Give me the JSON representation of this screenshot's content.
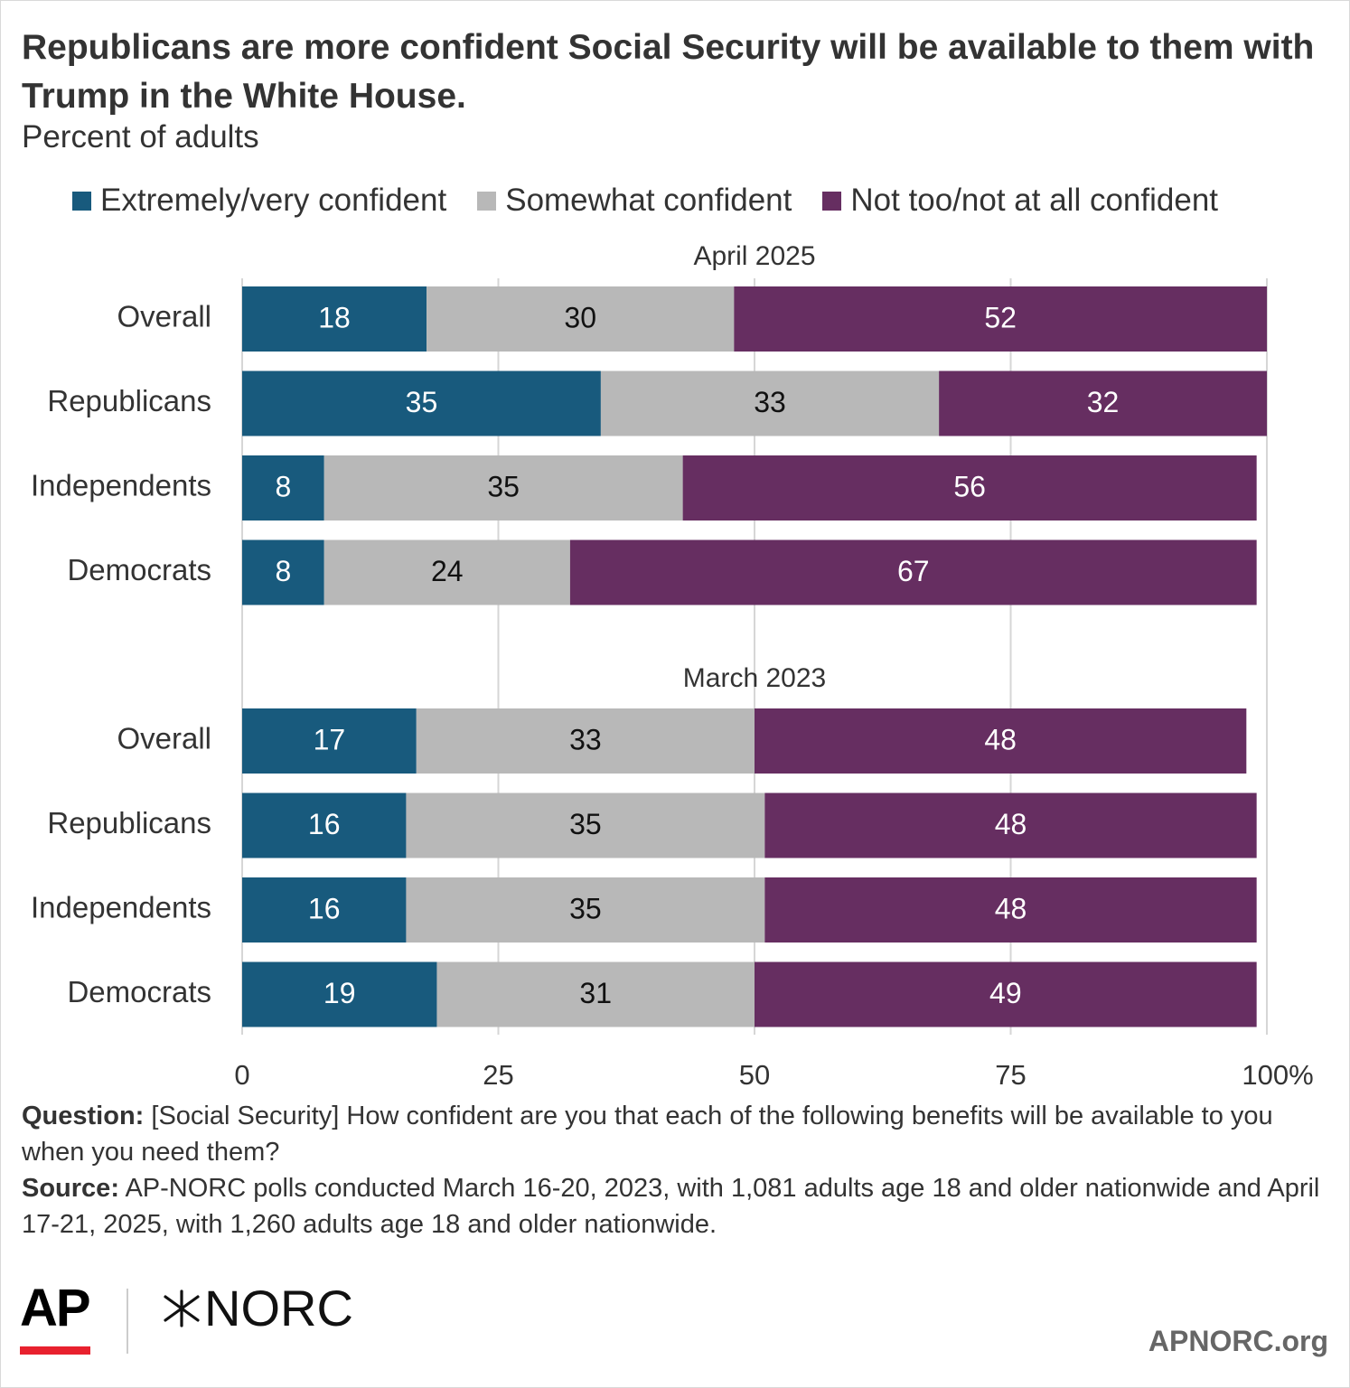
{
  "title": "Republicans are more confident Social Security will be available to them with Trump in the White House.",
  "subtitle": "Percent of adults",
  "legend": [
    {
      "label": "Extremely/very confident",
      "color": "#185a7d"
    },
    {
      "label": "Somewhat confident",
      "color": "#b8b8b8"
    },
    {
      "label": "Not too/not at all confident",
      "color": "#662e61"
    }
  ],
  "chart_data": {
    "type": "bar",
    "orientation": "horizontal",
    "stacked": true,
    "xlim": [
      0,
      100
    ],
    "x_ticks": [
      "0",
      "25",
      "50",
      "75",
      "100%"
    ],
    "grid": true,
    "legend_position": "top",
    "series_names": [
      "Extremely/very confident",
      "Somewhat confident",
      "Not too/not at all confident"
    ],
    "colors": [
      "#185a7d",
      "#b8b8b8",
      "#662e61"
    ],
    "label_colors": [
      "#ffffff",
      "#111111",
      "#ffffff"
    ],
    "groups": [
      {
        "label": "April 2025",
        "rows": [
          {
            "category": "Overall",
            "values": [
              18,
              30,
              52
            ]
          },
          {
            "category": "Republicans",
            "values": [
              35,
              33,
              32
            ]
          },
          {
            "category": "Independents",
            "values": [
              8,
              35,
              56
            ]
          },
          {
            "category": "Democrats",
            "values": [
              8,
              24,
              67
            ]
          }
        ]
      },
      {
        "label": "March 2023",
        "rows": [
          {
            "category": "Overall",
            "values": [
              17,
              33,
              48
            ]
          },
          {
            "category": "Republicans",
            "values": [
              16,
              35,
              48
            ]
          },
          {
            "category": "Independents",
            "values": [
              16,
              35,
              48
            ]
          },
          {
            "category": "Democrats",
            "values": [
              19,
              31,
              49
            ]
          }
        ]
      }
    ]
  },
  "notes": {
    "question_label": "Question:",
    "question_text": " [Social Security] How confident are you that each of the following benefits will be available to you when you need them?",
    "source_label": "Source:",
    "source_text": " AP-NORC polls conducted March 16-20, 2023, with 1,081 adults age 18 and older nationwide and April 17-21, 2025, with 1,260 adults age 18 and older nationwide."
  },
  "logos": {
    "ap": "AP",
    "norc": "NORC",
    "site": "APNORC.org"
  }
}
